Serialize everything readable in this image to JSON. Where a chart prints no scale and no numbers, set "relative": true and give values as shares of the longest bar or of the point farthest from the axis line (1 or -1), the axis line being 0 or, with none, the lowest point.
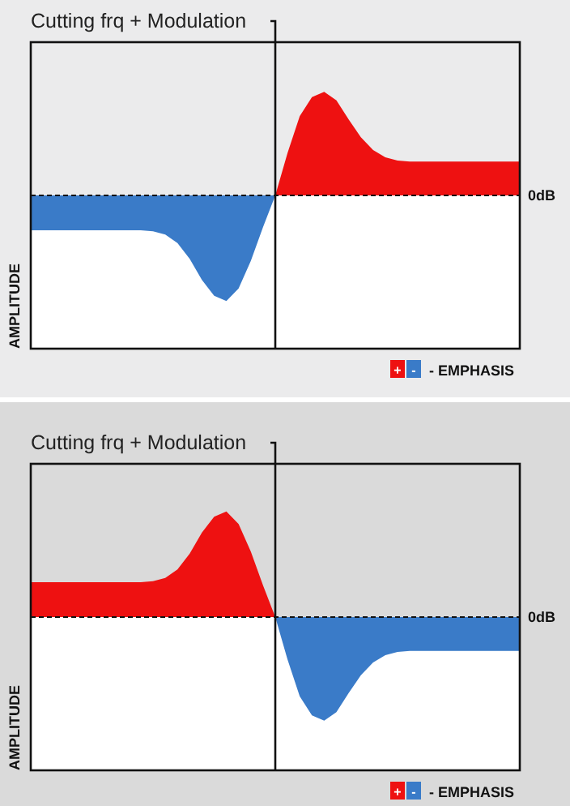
{
  "chart_data": [
    {
      "type": "area",
      "relative": true,
      "title": "Cutting frq + Modulation",
      "categories": [
        null,
        null,
        null,
        null,
        null,
        null,
        null,
        null,
        null,
        null,
        null,
        null,
        null,
        null,
        null,
        null,
        null,
        null,
        null,
        null,
        null,
        null,
        null,
        null,
        null,
        null,
        null,
        null,
        null,
        null,
        null,
        null,
        null,
        null,
        null,
        null,
        null,
        null,
        null,
        null,
        null
      ],
      "ylabel": "AMPLITUDE",
      "legend": "bottom right",
      "legend_title": "- EMPHASIS",
      "ref_lines": [
        {
          "axis": "y",
          "value": 0,
          "label": "0dB",
          "line_style": "dashed"
        }
      ],
      "series": [
        {
          "name": "+",
          "color": "#ee1111",
          "values": [
            null,
            null,
            null,
            null,
            null,
            null,
            null,
            null,
            null,
            null,
            null,
            null,
            null,
            null,
            null,
            null,
            null,
            null,
            null,
            null,
            0,
            0.4,
            0.75,
            0.93,
            0.98,
            0.9,
            0.72,
            0.55,
            0.43,
            0.36,
            0.33,
            0.32,
            0.32,
            0.32,
            0.32,
            0.32,
            0.32,
            0.32,
            0.32,
            0.32,
            0.32
          ]
        },
        {
          "name": "-",
          "color": "#3a7bc8",
          "values": [
            -0.33,
            -0.33,
            -0.33,
            -0.33,
            -0.33,
            -0.33,
            -0.33,
            -0.33,
            -0.33,
            -0.33,
            -0.34,
            -0.37,
            -0.45,
            -0.6,
            -0.8,
            -0.95,
            -1,
            -0.88,
            -0.62,
            -0.3,
            0,
            null,
            null,
            null,
            null,
            null,
            null,
            null,
            null,
            null,
            null,
            null,
            null,
            null,
            null,
            null,
            null,
            null,
            null,
            null,
            null
          ]
        }
      ]
    },
    {
      "type": "area",
      "relative": true,
      "title": "Cutting frq + Modulation",
      "categories": [
        null,
        null,
        null,
        null,
        null,
        null,
        null,
        null,
        null,
        null,
        null,
        null,
        null,
        null,
        null,
        null,
        null,
        null,
        null,
        null,
        null,
        null,
        null,
        null,
        null,
        null,
        null,
        null,
        null,
        null,
        null,
        null,
        null,
        null,
        null,
        null,
        null,
        null,
        null,
        null,
        null
      ],
      "ylabel": "AMPLITUDE",
      "legend": "bottom right",
      "legend_title": "- EMPHASIS",
      "ref_lines": [
        {
          "axis": "y",
          "value": 0,
          "label": "0dB",
          "line_style": "dashed"
        }
      ],
      "series": [
        {
          "name": "+",
          "color": "#ee1111",
          "values": [
            0.33,
            0.33,
            0.33,
            0.33,
            0.33,
            0.33,
            0.33,
            0.33,
            0.33,
            0.33,
            0.34,
            0.37,
            0.45,
            0.6,
            0.8,
            0.95,
            1,
            0.88,
            0.62,
            0.3,
            0,
            null,
            null,
            null,
            null,
            null,
            null,
            null,
            null,
            null,
            null,
            null,
            null,
            null,
            null,
            null,
            null,
            null,
            null,
            null,
            null
          ]
        },
        {
          "name": "-",
          "color": "#3a7bc8",
          "values": [
            null,
            null,
            null,
            null,
            null,
            null,
            null,
            null,
            null,
            null,
            null,
            null,
            null,
            null,
            null,
            null,
            null,
            null,
            null,
            null,
            0,
            -0.4,
            -0.75,
            -0.93,
            -0.98,
            -0.9,
            -0.72,
            -0.55,
            -0.43,
            -0.36,
            -0.33,
            -0.32,
            -0.32,
            -0.32,
            -0.32,
            -0.32,
            -0.32,
            -0.32,
            -0.32,
            -0.32,
            -0.32
          ]
        }
      ]
    }
  ]
}
